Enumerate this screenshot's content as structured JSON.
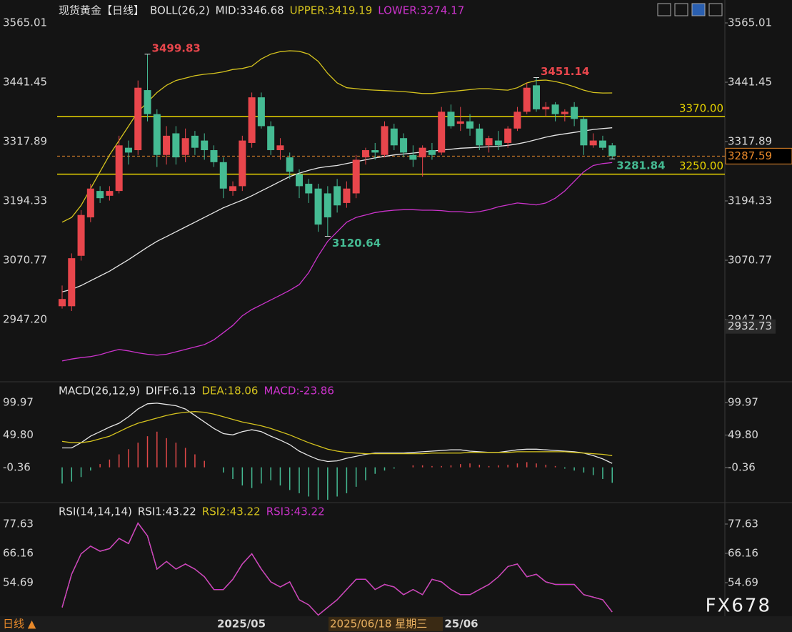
{
  "chart_data": [
    {
      "type": "candlestick",
      "title": "现货黄金【日线】",
      "indicator": "BOLL(26,2)",
      "ylim": [
        2823.6,
        3571
      ],
      "yticks": [
        3565.01,
        3441.45,
        3317.89,
        3194.33,
        3070.77,
        {
          "value": 2947.2,
          "label": "2947.20"
        }
      ],
      "up_color": "#e8464c",
      "down_color": "#45bb93",
      "open": [
        2975,
        2975,
        3080,
        3160,
        3215,
        3205,
        3215,
        3305,
        3300,
        3425,
        3375,
        3290,
        3335,
        3290,
        3330,
        3320,
        3300,
        3275,
        3215,
        3225,
        3315,
        3410,
        3350,
        3300,
        3285,
        3250,
        3230,
        3220,
        3210,
        3225,
        3190,
        3210,
        3285,
        3300,
        3290,
        3345,
        3325,
        3290,
        3285,
        3300,
        3295,
        3380,
        3355,
        3360,
        3345,
        3310,
        3320,
        3315,
        3345,
        3380,
        3435,
        3385,
        3395,
        3375,
        3390,
        3365,
        3310,
        3320,
        3310
      ],
      "high": [
        3018,
        3085,
        3175,
        3230,
        3225,
        3225,
        3330,
        3320,
        3445,
        3499.83,
        3385,
        3350,
        3350,
        3345,
        3340,
        3335,
        3310,
        3285,
        3235,
        3330,
        3420,
        3420,
        3360,
        3325,
        3295,
        3260,
        3240,
        3230,
        3225,
        3240,
        3235,
        3290,
        3305,
        3315,
        3360,
        3355,
        3335,
        3310,
        3310,
        3315,
        3390,
        3395,
        3390,
        3375,
        3355,
        3330,
        3340,
        3350,
        3390,
        3440,
        3451.14,
        3400,
        3400,
        3385,
        3400,
        3370,
        3335,
        3330,
        3315
      ],
      "low": [
        2970,
        2965,
        3070,
        3150,
        3190,
        3195,
        3210,
        3270,
        3290,
        3360,
        3265,
        3270,
        3270,
        3275,
        3290,
        3280,
        3265,
        3200,
        3205,
        3215,
        3305,
        3345,
        3290,
        3280,
        3240,
        3200,
        3190,
        3130,
        3120.64,
        3170,
        3180,
        3200,
        3270,
        3280,
        3285,
        3300,
        3285,
        3265,
        3245,
        3280,
        3290,
        3345,
        3340,
        3330,
        3300,
        3295,
        3300,
        3305,
        3340,
        3375,
        3380,
        3370,
        3360,
        3360,
        3350,
        3290,
        3305,
        3300,
        3281.84
      ],
      "close": [
        2990,
        3075,
        3165,
        3220,
        3200,
        3215,
        3310,
        3295,
        3430,
        3375,
        3290,
        3330,
        3285,
        3325,
        3305,
        3300,
        3275,
        3220,
        3225,
        3320,
        3410,
        3350,
        3300,
        3310,
        3255,
        3225,
        3210,
        3145,
        3160,
        3185,
        3220,
        3280,
        3300,
        3295,
        3350,
        3310,
        3295,
        3280,
        3305,
        3290,
        3380,
        3350,
        3360,
        3345,
        3310,
        3325,
        3310,
        3345,
        3380,
        3430,
        3385,
        3390,
        3375,
        3380,
        3365,
        3310,
        3320,
        3305,
        3287.59
      ],
      "series": [
        {
          "name": "MID:3346.68",
          "color": "#e6e6e6",
          "values": [
            3005,
            3010,
            3018,
            3028,
            3038,
            3048,
            3060,
            3072,
            3085,
            3098,
            3110,
            3120,
            3130,
            3140,
            3150,
            3160,
            3170,
            3180,
            3188,
            3196,
            3205,
            3215,
            3225,
            3235,
            3245,
            3252,
            3258,
            3263,
            3266,
            3268,
            3272,
            3276,
            3280,
            3284,
            3287,
            3290,
            3292,
            3294,
            3296,
            3298,
            3300,
            3302,
            3304,
            3305,
            3306,
            3307,
            3308,
            3310,
            3313,
            3317,
            3322,
            3327,
            3331,
            3334,
            3337,
            3340,
            3343,
            3345,
            3346.68
          ]
        },
        {
          "name": "UPPER:3419.19",
          "color": "#d6c41e",
          "values": [
            3150,
            3160,
            3185,
            3220,
            3255,
            3290,
            3320,
            3350,
            3380,
            3400,
            3420,
            3435,
            3445,
            3450,
            3455,
            3458,
            3460,
            3463,
            3468,
            3470,
            3475,
            3490,
            3500,
            3505,
            3507,
            3506,
            3500,
            3485,
            3460,
            3440,
            3430,
            3428,
            3426,
            3425,
            3424,
            3423,
            3422,
            3420,
            3418,
            3418,
            3420,
            3422,
            3424,
            3426,
            3428,
            3428,
            3426,
            3425,
            3430,
            3440,
            3445,
            3446,
            3443,
            3438,
            3432,
            3425,
            3420,
            3419,
            3419.19
          ]
        },
        {
          "name": "LOWER:3274.17",
          "color": "#cc33cc",
          "values": [
            2861,
            2865,
            2868,
            2870,
            2874,
            2880,
            2885,
            2882,
            2878,
            2875,
            2873,
            2875,
            2880,
            2885,
            2890,
            2895,
            2905,
            2920,
            2935,
            2955,
            2968,
            2978,
            2988,
            2998,
            3008,
            3020,
            3045,
            3080,
            3110,
            3130,
            3150,
            3160,
            3165,
            3170,
            3173,
            3175,
            3176,
            3176,
            3175,
            3175,
            3174,
            3172,
            3172,
            3170,
            3172,
            3176,
            3182,
            3186,
            3190,
            3188,
            3186,
            3190,
            3200,
            3215,
            3235,
            3255,
            3268,
            3272,
            3274.17
          ]
        }
      ],
      "hlines": [
        {
          "value": 3370,
          "label": "3370.00",
          "color": "#e8d400"
        },
        {
          "value": 3250,
          "label": "3250.00",
          "color": "#e8d400"
        }
      ],
      "last_price": 3287.59,
      "last_color": "#e8892a",
      "cursor_price": 2932.73,
      "annotations": [
        3499.83,
        3451.14,
        3120.64,
        3281.84
      ]
    },
    {
      "type": "macd",
      "title": "MACD(26,12,9)",
      "ylim": [
        -51.1,
        107.7
      ],
      "yticks": [
        99.97,
        {
          "value": 49.8,
          "label": "49.80"
        },
        -0.36
      ],
      "series": [
        {
          "name": "DIFF:6.13",
          "color": "#e6e6e6",
          "values": [
            30,
            30,
            38,
            48,
            55,
            62,
            68,
            78,
            90,
            98,
            99,
            97,
            95,
            90,
            80,
            70,
            60,
            52,
            50,
            55,
            58,
            55,
            48,
            42,
            35,
            25,
            18,
            12,
            9,
            10,
            14,
            17,
            20,
            22,
            22,
            22,
            22,
            23,
            24,
            25,
            26,
            27,
            27,
            25,
            24,
            23,
            23,
            25,
            27,
            28,
            28,
            27,
            26,
            25,
            24,
            22,
            18,
            13,
            6.13
          ]
        },
        {
          "name": "DEA:18.06",
          "color": "#d6c41e",
          "values": [
            40,
            38,
            38,
            40,
            44,
            48,
            55,
            62,
            68,
            72,
            76,
            80,
            83,
            85,
            86,
            85,
            82,
            78,
            74,
            70,
            67,
            64,
            60,
            55,
            50,
            44,
            38,
            33,
            28,
            25,
            23,
            22,
            21,
            21,
            21,
            21,
            21,
            21,
            21,
            22,
            22,
            22,
            22,
            23,
            23,
            23,
            23,
            23,
            24,
            24,
            24,
            24,
            24,
            24,
            23,
            22,
            21,
            20,
            18.06
          ]
        },
        {
          "name": "MACD:-23.86",
          "color": "#cc33cc",
          "up_color": "#e04848",
          "down_color": "#45bb93",
          "values": [
            -25,
            -22,
            -15,
            -5,
            5,
            12,
            20,
            28,
            38,
            48,
            55,
            45,
            38,
            30,
            20,
            10,
            0,
            -8,
            -18,
            -28,
            -32,
            -25,
            -20,
            -28,
            -35,
            -40,
            -45,
            -50,
            -50,
            -45,
            -40,
            -30,
            -20,
            -10,
            -5,
            -2,
            0,
            3,
            3,
            2,
            2,
            3,
            5,
            6,
            4,
            2,
            3,
            4,
            6,
            8,
            6,
            4,
            2,
            -2,
            -5,
            -8,
            -12,
            -18,
            -23.86
          ]
        }
      ]
    },
    {
      "type": "line",
      "title": "RSI(14,14,14)",
      "ylim": [
        42.66,
        79.87
      ],
      "yticks": [
        77.63,
        66.16,
        54.69
      ],
      "series": [
        {
          "name": "RSI1:43.22",
          "color": "#e6e6e6",
          "values": [
            45,
            58,
            66,
            69,
            67,
            68,
            72,
            70,
            78,
            73,
            60,
            63,
            60,
            62,
            60,
            57,
            52,
            52,
            56,
            62,
            66,
            60,
            55,
            53,
            55,
            48,
            46,
            42,
            45,
            48,
            52,
            56,
            56,
            52,
            54,
            53,
            50,
            52,
            50,
            56,
            55,
            52,
            50,
            50,
            52,
            54,
            57,
            61,
            62,
            57,
            58,
            55,
            54,
            54,
            54,
            50,
            49,
            48,
            43.22
          ]
        },
        {
          "name": "RSI2:43.22",
          "color": "#d6c41e",
          "values": [
            45,
            58,
            66,
            69,
            67,
            68,
            72,
            70,
            78,
            73,
            60,
            63,
            60,
            62,
            60,
            57,
            52,
            52,
            56,
            62,
            66,
            60,
            55,
            53,
            55,
            48,
            46,
            42,
            45,
            48,
            52,
            56,
            56,
            52,
            54,
            53,
            50,
            52,
            50,
            56,
            55,
            52,
            50,
            50,
            52,
            54,
            57,
            61,
            62,
            57,
            58,
            55,
            54,
            54,
            54,
            50,
            49,
            48,
            43.22
          ]
        },
        {
          "name": "RSI3:43.22",
          "color": "#cc33cc",
          "values": [
            45,
            58,
            66,
            69,
            67,
            68,
            72,
            70,
            78,
            73,
            60,
            63,
            60,
            62,
            60,
            57,
            52,
            52,
            56,
            62,
            66,
            60,
            55,
            53,
            55,
            48,
            46,
            42,
            45,
            48,
            52,
            56,
            56,
            52,
            54,
            53,
            50,
            52,
            50,
            56,
            55,
            52,
            50,
            50,
            52,
            54,
            57,
            61,
            62,
            57,
            58,
            55,
            54,
            54,
            54,
            50,
            49,
            48,
            43.22
          ]
        }
      ]
    }
  ],
  "footer": {
    "period": "日线 ▲",
    "x_labels": [
      "2025/05",
      "25/06"
    ],
    "cursor_date": "2025/06/18 星期三",
    "watermark": "FX678"
  }
}
